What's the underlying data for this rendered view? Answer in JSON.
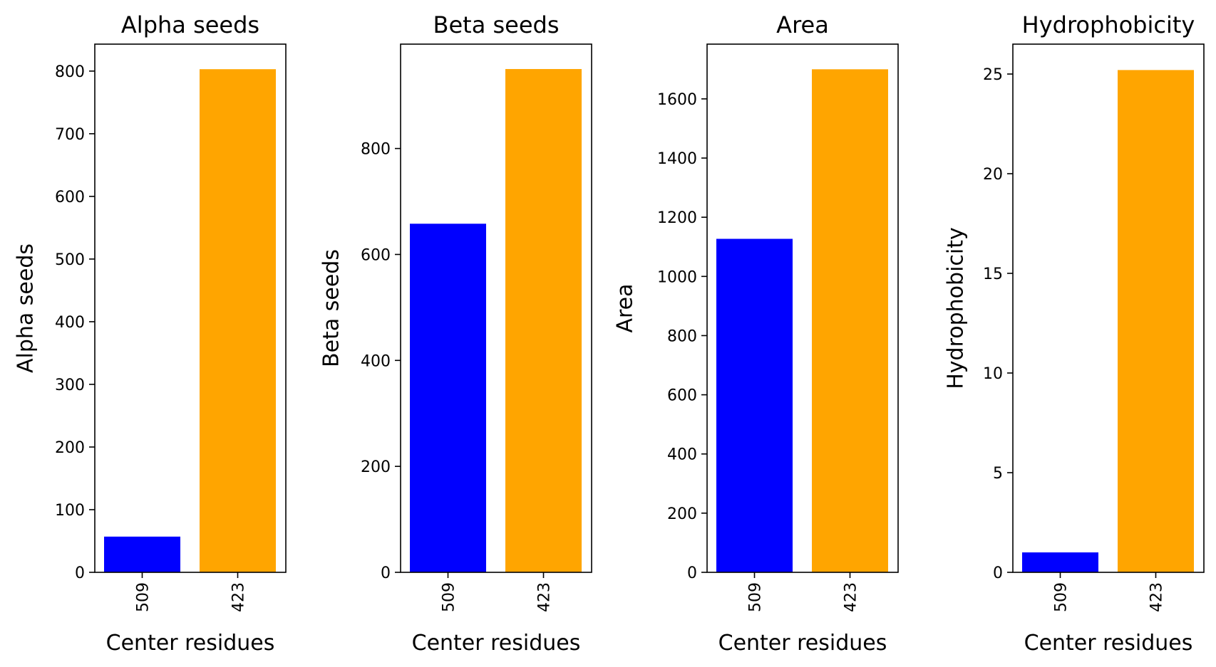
{
  "chart_data": [
    {
      "type": "bar",
      "title": "Alpha seeds",
      "xlabel": "Center residues",
      "ylabel": "Alpha seeds",
      "categories": [
        "509",
        "423"
      ],
      "values": [
        57,
        803
      ],
      "colors": [
        "#0000ff",
        "#ffa500"
      ],
      "ylim": [
        0,
        843
      ],
      "yticks": [
        0,
        100,
        200,
        300,
        400,
        500,
        600,
        700,
        800
      ],
      "grid": false,
      "legend": "none"
    },
    {
      "type": "bar",
      "title": "Beta seeds",
      "xlabel": "Center residues",
      "ylabel": "Beta seeds",
      "categories": [
        "509",
        "423"
      ],
      "values": [
        658,
        950
      ],
      "colors": [
        "#0000ff",
        "#ffa500"
      ],
      "ylim": [
        0,
        997
      ],
      "yticks": [
        0,
        200,
        400,
        600,
        800
      ],
      "grid": false,
      "legend": "none"
    },
    {
      "type": "bar",
      "title": "Area",
      "xlabel": "Center residues",
      "ylabel": "Area",
      "categories": [
        "509",
        "423"
      ],
      "values": [
        1127,
        1700
      ],
      "colors": [
        "#0000ff",
        "#ffa500"
      ],
      "ylim": [
        0,
        1785
      ],
      "yticks": [
        0,
        200,
        400,
        600,
        800,
        1000,
        1200,
        1400,
        1600
      ],
      "grid": false,
      "legend": "none"
    },
    {
      "type": "bar",
      "title": "Hydrophobicity",
      "xlabel": "Center residues",
      "ylabel": "Hydrophobicity",
      "categories": [
        "509",
        "423"
      ],
      "values": [
        1.0,
        25.2
      ],
      "colors": [
        "#0000ff",
        "#ffa500"
      ],
      "ylim": [
        0,
        26.5
      ],
      "yticks": [
        0,
        5,
        10,
        15,
        20,
        25
      ],
      "grid": false,
      "legend": "none"
    }
  ]
}
